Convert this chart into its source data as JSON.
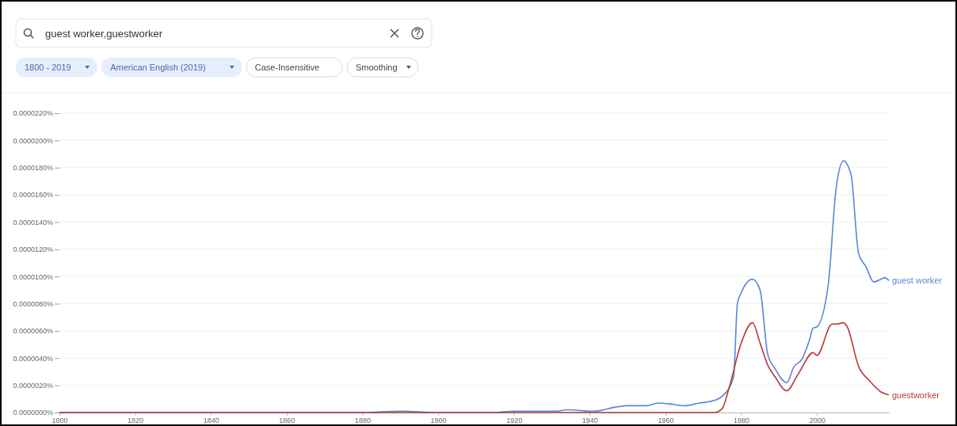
{
  "chart_data": {
    "type": "line",
    "annotations": [
      "guest worker,guestworker",
      "1800 - 2019",
      "American English (2019)",
      "Case-Insensitive",
      "Smoothing"
    ],
    "series": [
      {
        "name": "guest worker",
        "color": "#5a86d4",
        "x": [
          1800,
          1880,
          1890,
          1900,
          1915,
          1920,
          1924,
          1931,
          1934,
          1941,
          1947,
          1950,
          1955,
          1958,
          1962,
          1965,
          1969,
          1973,
          1975,
          1978,
          1979,
          1980,
          1983,
          1985,
          1987,
          1989,
          1992,
          1994,
          1996,
          1998,
          1999,
          2000,
          2003,
          2005,
          2007,
          2009,
          2011,
          2013,
          2015,
          2018,
          2019
        ],
        "values": [
          0,
          0,
          1e-07,
          0,
          0,
          1e-07,
          1e-07,
          1e-07,
          2e-07,
          1e-07,
          4e-07,
          5e-07,
          5e-07,
          7e-07,
          6e-07,
          5e-07,
          7e-07,
          9e-07,
          1.2e-06,
          2.6e-06,
          8e-06,
          8.8e-06,
          9.8e-06,
          9e-06,
          4.3e-06,
          3.2e-06,
          2.2e-06,
          3.4e-06,
          3.9e-06,
          5.3e-06,
          6.2e-06,
          6.3e-06,
          9.4e-06,
          1.63e-05,
          1.85e-05,
          1.75e-05,
          1.17e-05,
          1.07e-05,
          9.6e-06,
          9.9e-06,
          9.7e-06
        ]
      },
      {
        "name": "guestworker",
        "color": "#b73a33",
        "x": [
          1800,
          1973,
          1975,
          1977,
          1980,
          1983,
          1985,
          1987,
          1989,
          1992,
          1995,
          1999,
          2000,
          2004,
          2005,
          2007,
          2008,
          2011,
          2014,
          2017,
          2019
        ],
        "values": [
          0,
          0,
          3e-07,
          2e-06,
          5.1e-06,
          6.6e-06,
          5.1e-06,
          3.5e-06,
          2.6e-06,
          1.6e-06,
          2.8e-06,
          4.4e-06,
          4.2e-06,
          6.5e-06,
          6.5e-06,
          6.6e-06,
          6.3e-06,
          3.4e-06,
          2.3e-06,
          1.5e-06,
          1.3e-06
        ]
      }
    ],
    "xlim": [
      1800,
      2019
    ],
    "xticks": [
      1800,
      1820,
      1840,
      1860,
      1880,
      1900,
      1920,
      1940,
      1960,
      1980,
      2000
    ],
    "ylim": [
      0,
      2.2e-05
    ],
    "yticks": [
      {
        "value": 0,
        "label": "0.0000000%"
      },
      {
        "value": 2e-06,
        "label": "0.0000020%"
      },
      {
        "value": 4e-06,
        "label": "0.0000040%"
      },
      {
        "value": 6e-06,
        "label": "0.0000060%"
      },
      {
        "value": 8e-06,
        "label": "0.0000080%"
      },
      {
        "value": 1e-05,
        "label": "0.0000100%"
      },
      {
        "value": 1.2e-05,
        "label": "0.0000120%"
      },
      {
        "value": 1.4e-05,
        "label": "0.0000140%"
      },
      {
        "value": 1.6e-05,
        "label": "0.0000160%"
      },
      {
        "value": 1.8e-05,
        "label": "0.0000180%"
      },
      {
        "value": 2e-05,
        "label": "0.0000200%"
      },
      {
        "value": 2.2e-05,
        "label": "0.0000220%"
      }
    ],
    "grid": "y",
    "legend": false
  }
}
